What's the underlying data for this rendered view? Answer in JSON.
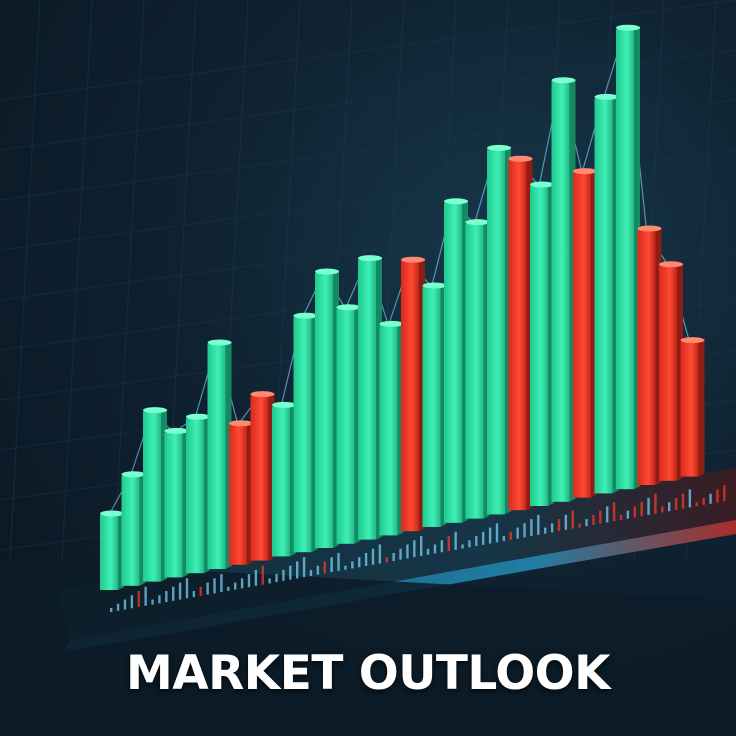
{
  "headline": "MARKET OUTLOOK",
  "colors": {
    "background": "#0f2231",
    "bull": "#2ee6a6",
    "bear": "#ff3b2a",
    "wick": "#7fd9ff"
  },
  "chart_data": {
    "type": "bar",
    "style": "isometric 3D candlestick columns",
    "values": [
      1.5,
      2.2,
      3.4,
      2.9,
      3.1,
      4.5,
      2.8,
      3.3,
      3.0,
      4.7,
      5.5,
      4.7,
      5.6,
      4.2,
      5.4,
      4.8,
      6.4,
      5.9,
      7.3,
      7.0,
      6.4,
      8.4,
      6.5,
      7.9,
      9.2,
      5.1,
      4.3,
      2.7
    ],
    "direction": [
      "up",
      "up",
      "up",
      "up",
      "up",
      "up",
      "down",
      "down",
      "up",
      "up",
      "up",
      "up",
      "up",
      "up",
      "down",
      "up",
      "up",
      "up",
      "up",
      "down",
      "up",
      "up",
      "down",
      "up",
      "up",
      "down",
      "down",
      "down"
    ],
    "grid": true,
    "legend": "none"
  }
}
